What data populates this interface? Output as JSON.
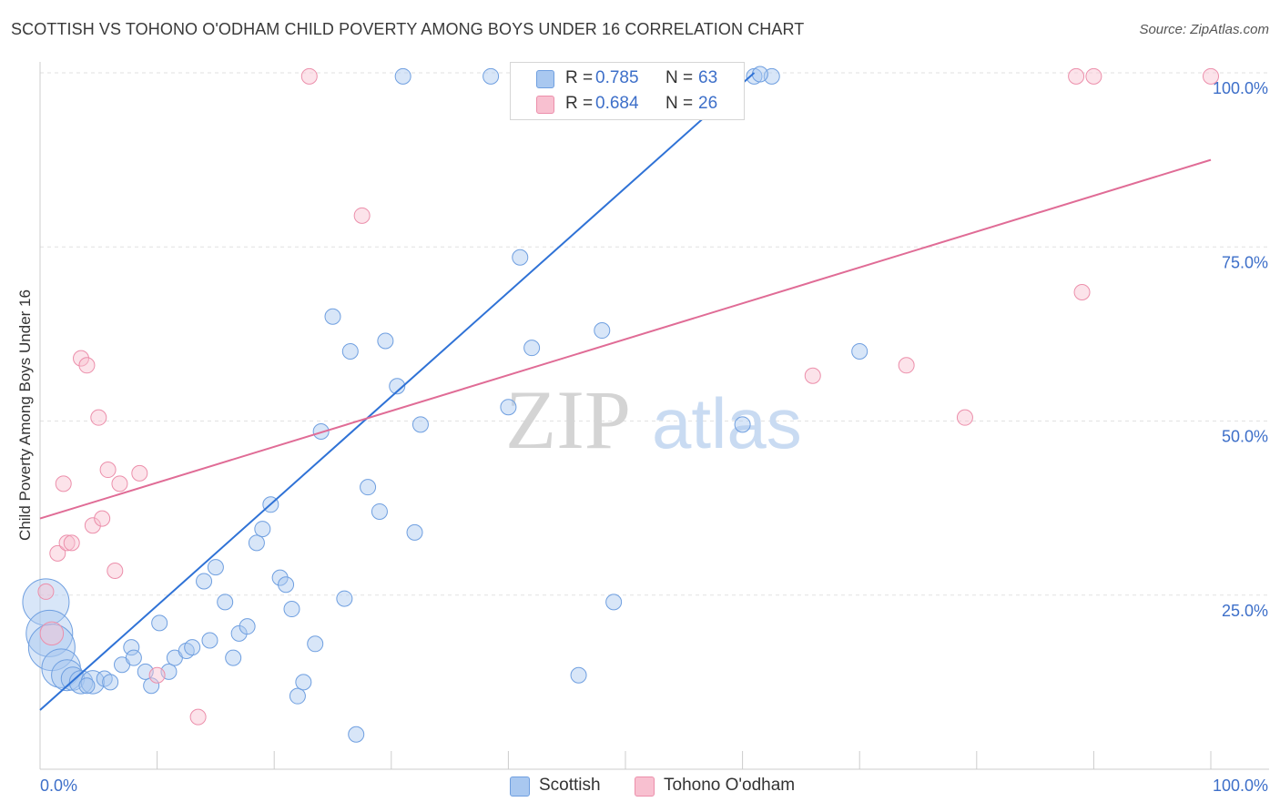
{
  "title": "SCOTTISH VS TOHONO O'ODHAM CHILD POVERTY AMONG BOYS UNDER 16 CORRELATION CHART",
  "source": "Source: ZipAtlas.com",
  "watermark": {
    "zip": "ZIP",
    "atlas": "atlas"
  },
  "colors": {
    "scottish_fill": "#a9c8f0",
    "scottish_stroke": "#6f9fe0",
    "scottish_line": "#2f72d6",
    "tohono_fill": "#f8c0d0",
    "tohono_stroke": "#ec8fab",
    "tohono_line": "#e06c96",
    "value_text": "#3d6fc9",
    "grid": "#e2e2e2"
  },
  "legend": {
    "rows": [
      {
        "r_label": "R =",
        "r_value": "0.785",
        "n_label": "N =",
        "n_value": "63"
      },
      {
        "r_label": "R =",
        "r_value": "0.684",
        "n_label": "N =",
        "n_value": "26"
      }
    ]
  },
  "bottom_legend": [
    "Scottish",
    "Tohono O'odham"
  ],
  "chart_data": {
    "type": "scatter",
    "title": "SCOTTISH VS TOHONO O'ODHAM CHILD POVERTY AMONG BOYS UNDER 16 CORRELATION CHART",
    "xlabel": "",
    "ylabel": "Child Poverty Among Boys Under 16",
    "xlim": [
      0,
      100
    ],
    "ylim": [
      0,
      100
    ],
    "x_tick_labels": [
      "0.0%",
      "100.0%"
    ],
    "y_tick_labels": [
      "25.0%",
      "50.0%",
      "75.0%",
      "100.0%"
    ],
    "y_ticks": [
      25,
      50,
      75,
      100
    ],
    "grid": true,
    "legend_position": "top-center",
    "series": [
      {
        "name": "Scottish",
        "r": 0.785,
        "n": 63,
        "trend": [
          [
            0,
            8.5
          ],
          [
            61,
            100
          ]
        ],
        "points": [
          [
            0.5,
            24,
            3
          ],
          [
            0.8,
            19.5,
            3
          ],
          [
            1.0,
            17.5,
            3
          ],
          [
            1.8,
            14.5,
            2.5
          ],
          [
            2.3,
            13.5,
            2
          ],
          [
            2.8,
            13,
            1.5
          ],
          [
            3.5,
            12.5,
            1.5
          ],
          [
            4.5,
            12.5,
            1.5
          ],
          [
            5.5,
            13,
            1
          ],
          [
            4.0,
            12,
            1
          ],
          [
            6.0,
            12.5,
            1
          ],
          [
            7.0,
            15,
            1
          ],
          [
            7.8,
            17.5,
            1
          ],
          [
            8.0,
            16,
            1
          ],
          [
            9.0,
            14,
            1
          ],
          [
            9.5,
            12,
            1
          ],
          [
            10.2,
            21,
            1
          ],
          [
            11.0,
            14,
            1
          ],
          [
            11.5,
            16,
            1
          ],
          [
            12.5,
            17,
            1
          ],
          [
            13.0,
            17.5,
            1
          ],
          [
            14.0,
            27,
            1
          ],
          [
            14.5,
            18.5,
            1
          ],
          [
            15.0,
            29,
            1
          ],
          [
            15.8,
            24,
            1
          ],
          [
            16.5,
            16,
            1
          ],
          [
            17.0,
            19.5,
            1
          ],
          [
            17.7,
            20.5,
            1
          ],
          [
            18.5,
            32.5,
            1
          ],
          [
            19.0,
            34.5,
            1
          ],
          [
            19.7,
            38,
            1
          ],
          [
            20.5,
            27.5,
            1
          ],
          [
            21.0,
            26.5,
            1
          ],
          [
            21.5,
            23,
            1
          ],
          [
            22.0,
            10.5,
            1
          ],
          [
            22.5,
            12.5,
            1
          ],
          [
            23.5,
            18,
            1
          ],
          [
            24.0,
            48.5,
            1
          ],
          [
            25.0,
            65,
            1
          ],
          [
            26.0,
            24.5,
            1
          ],
          [
            26.5,
            60,
            1
          ],
          [
            27.0,
            5,
            1
          ],
          [
            28.0,
            40.5,
            1
          ],
          [
            29.0,
            37,
            1
          ],
          [
            29.5,
            61.5,
            1
          ],
          [
            30.5,
            55,
            1
          ],
          [
            31.0,
            99.5,
            1
          ],
          [
            32.0,
            34,
            1
          ],
          [
            32.5,
            49.5,
            1
          ],
          [
            38.5,
            99.5,
            1
          ],
          [
            40.0,
            52,
            1
          ],
          [
            41.0,
            73.5,
            1
          ],
          [
            42.0,
            60.5,
            1
          ],
          [
            46.0,
            13.5,
            1
          ],
          [
            48.0,
            63,
            1
          ],
          [
            49.0,
            24,
            1
          ],
          [
            50.5,
            99.5,
            1
          ],
          [
            52.0,
            99.5,
            1
          ],
          [
            60.0,
            49.5,
            1
          ],
          [
            61.0,
            99.5,
            1
          ],
          [
            62.5,
            99.5,
            1
          ],
          [
            70.0,
            60,
            1
          ],
          [
            61.5,
            99.8,
            1
          ]
        ]
      },
      {
        "name": "Tohono O'odham",
        "r": 0.684,
        "n": 26,
        "trend": [
          [
            0,
            36
          ],
          [
            100,
            87.5
          ]
        ],
        "points": [
          [
            0.5,
            25.5,
            1
          ],
          [
            1.0,
            19.5,
            1.5
          ],
          [
            1.5,
            31,
            1
          ],
          [
            2.0,
            41,
            1
          ],
          [
            2.3,
            32.5,
            1
          ],
          [
            2.7,
            32.5,
            1
          ],
          [
            3.5,
            59,
            1
          ],
          [
            4.0,
            58,
            1
          ],
          [
            4.5,
            35,
            1
          ],
          [
            5.0,
            50.5,
            1
          ],
          [
            5.3,
            36,
            1
          ],
          [
            5.8,
            43,
            1
          ],
          [
            6.4,
            28.5,
            1
          ],
          [
            6.8,
            41,
            1
          ],
          [
            8.5,
            42.5,
            1
          ],
          [
            10.0,
            13.5,
            1
          ],
          [
            13.5,
            7.5,
            1
          ],
          [
            23.0,
            99.5,
            1
          ],
          [
            27.5,
            79.5,
            1
          ],
          [
            66.0,
            56.5,
            1
          ],
          [
            74.0,
            58,
            1
          ],
          [
            79.0,
            50.5,
            1
          ],
          [
            88.5,
            99.5,
            1
          ],
          [
            89.0,
            68.5,
            1
          ],
          [
            90.0,
            99.5,
            1
          ],
          [
            100.0,
            99.5,
            1
          ]
        ]
      }
    ]
  }
}
